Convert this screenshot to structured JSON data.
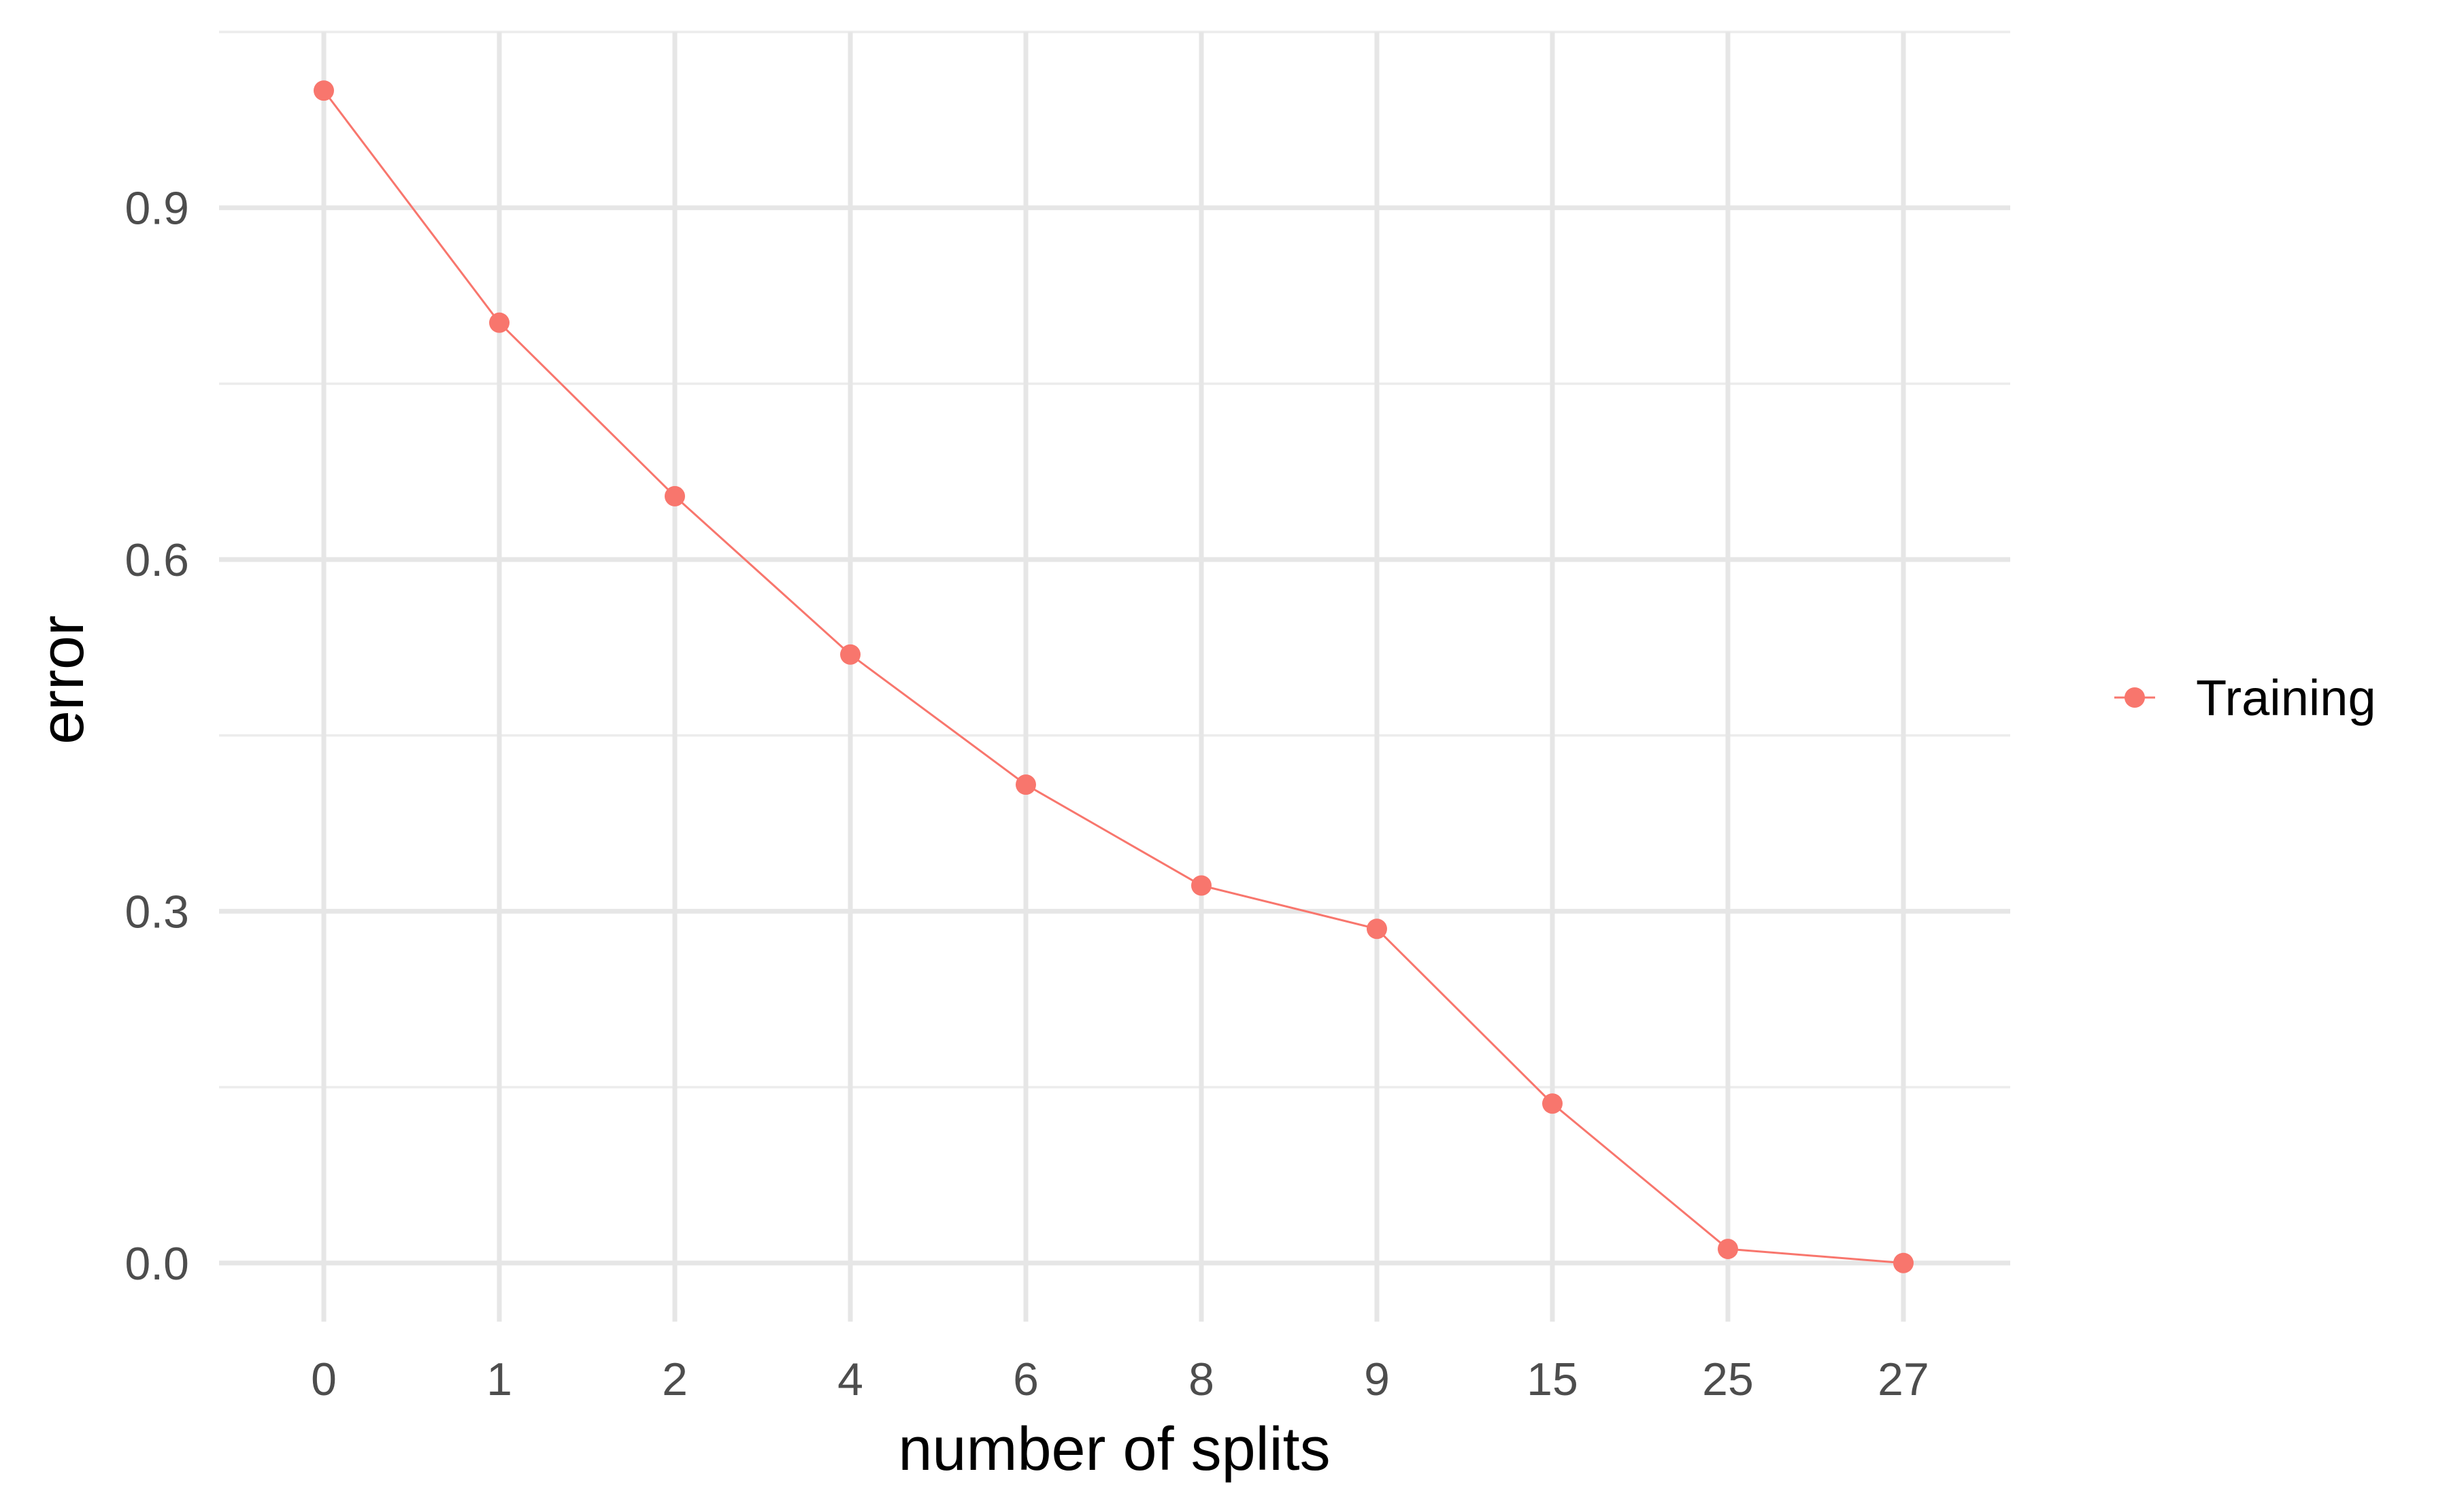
{
  "chart_data": {
    "type": "line",
    "title": "",
    "xlabel": "number of splits",
    "ylabel": "error",
    "categories": [
      "0",
      "1",
      "2",
      "4",
      "6",
      "8",
      "9",
      "15",
      "25",
      "27"
    ],
    "series": [
      {
        "name": "Training",
        "color": "#f8766d",
        "values": [
          1.0,
          0.802,
          0.654,
          0.519,
          0.408,
          0.322,
          0.285,
          0.136,
          0.012,
          0.0
        ]
      }
    ],
    "ylim": [
      -0.05,
      1.05
    ],
    "y_ticks": [
      "0.0",
      "0.3",
      "0.6",
      "0.9"
    ],
    "y_tick_values": [
      0.0,
      0.3,
      0.6,
      0.9
    ],
    "y_minor_values": [
      0.15,
      0.45,
      0.75,
      1.05
    ],
    "grid": true,
    "legend_position": "right",
    "markers": true
  }
}
